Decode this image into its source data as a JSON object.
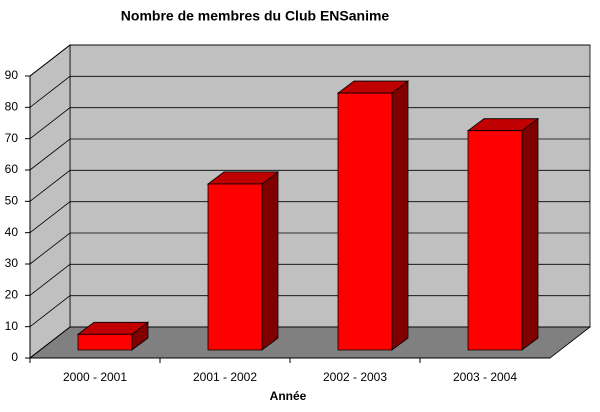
{
  "chart_data": {
    "type": "bar3d",
    "title": "Nombre de membres du Club ENSanime",
    "x_label": "Année",
    "categories": [
      "2000 - 2001",
      "2001 - 2002",
      "2002 - 2003",
      "2003 - 2004"
    ],
    "values": [
      5,
      53,
      82,
      70
    ],
    "color": "#ff0000",
    "ylim": [
      0,
      90
    ],
    "yticks": [
      0,
      10,
      20,
      30,
      40,
      50,
      60,
      70,
      80,
      90
    ],
    "grid": true
  }
}
